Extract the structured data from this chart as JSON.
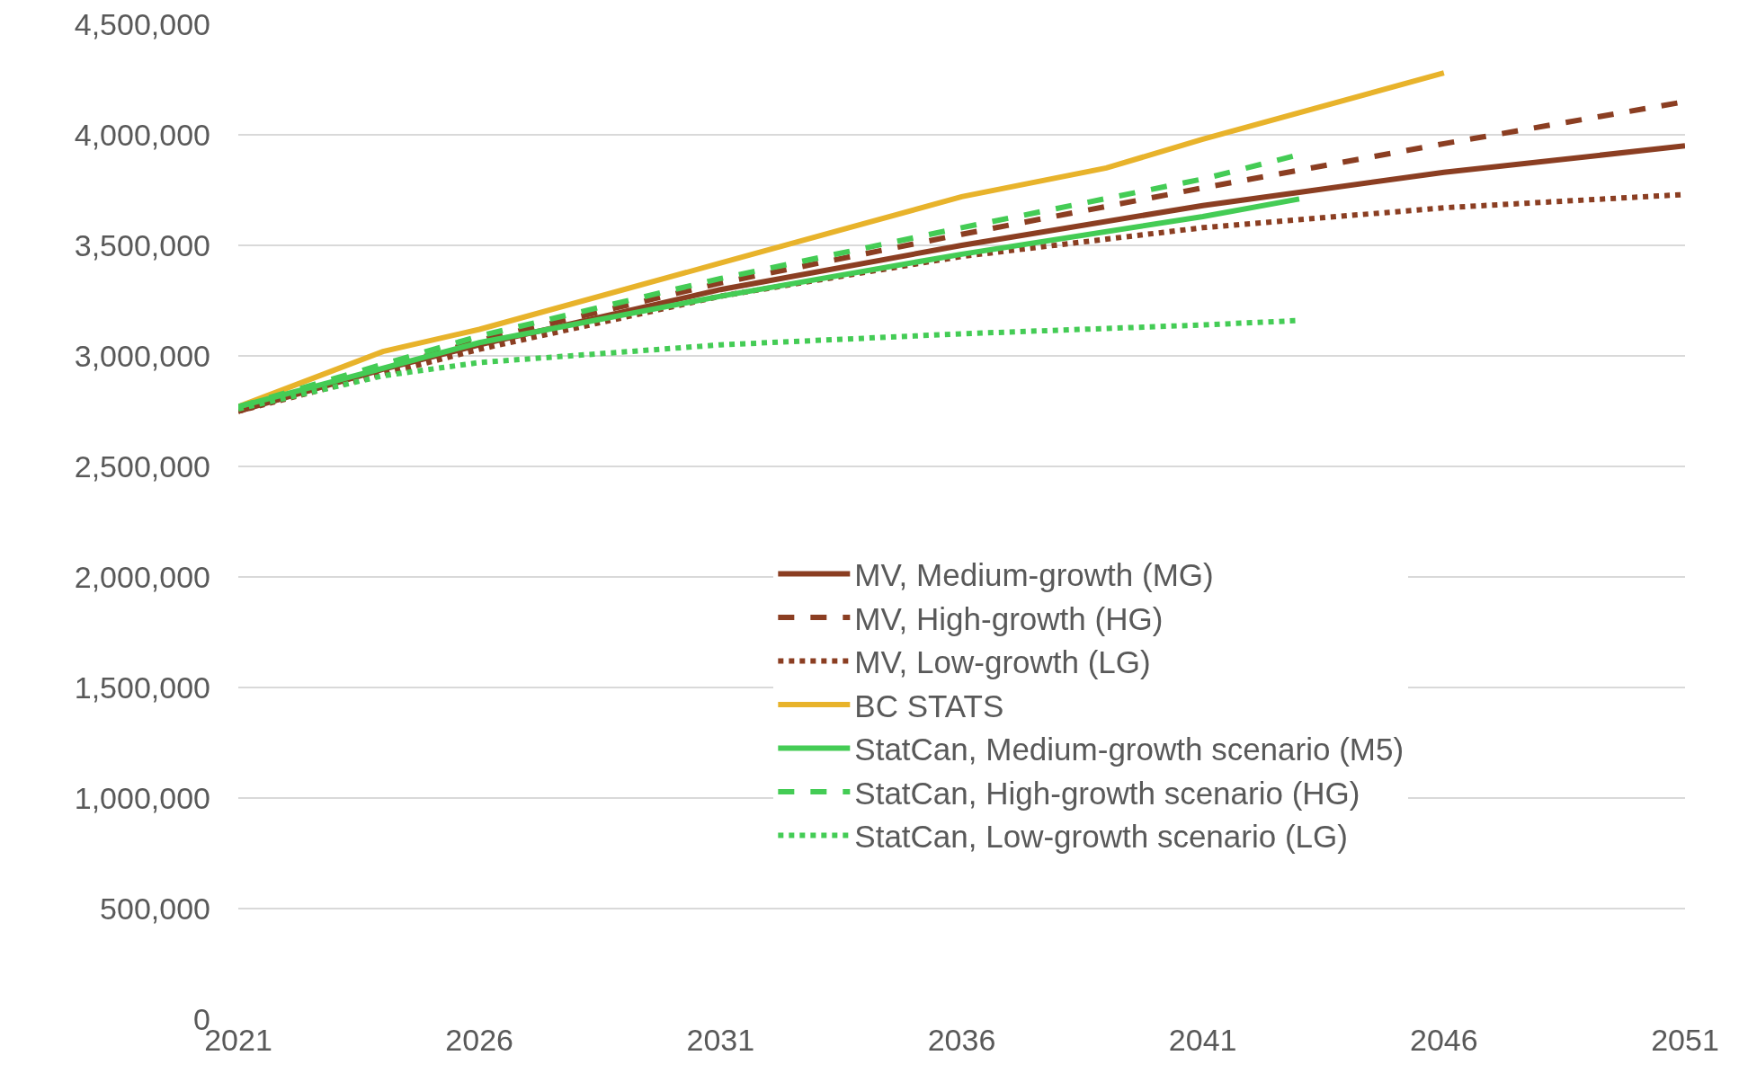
{
  "chart_data": {
    "type": "line",
    "xlim": [
      2021,
      2051
    ],
    "xticks": [
      2021,
      2026,
      2031,
      2036,
      2041,
      2046,
      2051
    ],
    "ylim": [
      0,
      4500000
    ],
    "yticks": [
      {
        "value": 0,
        "label": "0"
      },
      {
        "value": 500000,
        "label": "500,000"
      },
      {
        "value": 1000000,
        "label": "1,000,000"
      },
      {
        "value": 1500000,
        "label": "1,500,000"
      },
      {
        "value": 2000000,
        "label": "2,000,000"
      },
      {
        "value": 2500000,
        "label": "2,500,000"
      },
      {
        "value": 3000000,
        "label": "3,000,000"
      },
      {
        "value": 3500000,
        "label": "3,500,000"
      },
      {
        "value": 4000000,
        "label": "4,000,000"
      },
      {
        "value": 4500000,
        "label": "4,500,000"
      }
    ],
    "grid": "y",
    "legend": "bottom right",
    "marker": "none",
    "series": [
      {
        "name": "MV, Medium-growth (MG)",
        "color": "#8b3e22",
        "line_style": "solid",
        "x": [
          2021,
          2024,
          2026,
          2031,
          2036,
          2041,
          2043,
          2046,
          2051
        ],
        "values": [
          2750000,
          2940000,
          3050000,
          3300000,
          3500000,
          3680000,
          3740000,
          3830000,
          3950000
        ]
      },
      {
        "name": "MV, High-growth (HG)",
        "color": "#8b3e22",
        "line_style": "dashed",
        "x": [
          2021,
          2026,
          2031,
          2036,
          2041,
          2046,
          2051
        ],
        "values": [
          2750000,
          3070000,
          3330000,
          3550000,
          3760000,
          3960000,
          4150000
        ]
      },
      {
        "name": "MV, Low-growth (LG)",
        "color": "#8b3e22",
        "line_style": "dotted",
        "x": [
          2021,
          2026,
          2031,
          2036,
          2041,
          2046,
          2051
        ],
        "values": [
          2750000,
          3030000,
          3270000,
          3450000,
          3580000,
          3670000,
          3730000
        ]
      },
      {
        "name": "BC STATS",
        "color": "#e8b32b",
        "line_style": "solid",
        "x": [
          2021,
          2024,
          2026,
          2031,
          2036,
          2039,
          2041,
          2046
        ],
        "values": [
          2770000,
          3020000,
          3120000,
          3420000,
          3720000,
          3850000,
          3980000,
          4280000
        ]
      },
      {
        "name": "StatCan, Medium-growth scenario (M5)",
        "color": "#44cc55",
        "line_style": "solid",
        "x": [
          2021,
          2026,
          2031,
          2036,
          2041,
          2043
        ],
        "values": [
          2770000,
          3060000,
          3270000,
          3460000,
          3630000,
          3710000
        ]
      },
      {
        "name": "StatCan, High-growth scenario (HG)",
        "color": "#44cc55",
        "line_style": "dashed",
        "x": [
          2021,
          2026,
          2031,
          2036,
          2041,
          2043
        ],
        "values": [
          2770000,
          3090000,
          3350000,
          3580000,
          3800000,
          3910000
        ]
      },
      {
        "name": "StatCan, Low-growth scenario (LG)",
        "color": "#44cc55",
        "line_style": "dotted",
        "x": [
          2021,
          2024,
          2026,
          2031,
          2036,
          2041,
          2043
        ],
        "values": [
          2760000,
          2910000,
          2970000,
          3050000,
          3100000,
          3140000,
          3160000
        ]
      }
    ]
  }
}
